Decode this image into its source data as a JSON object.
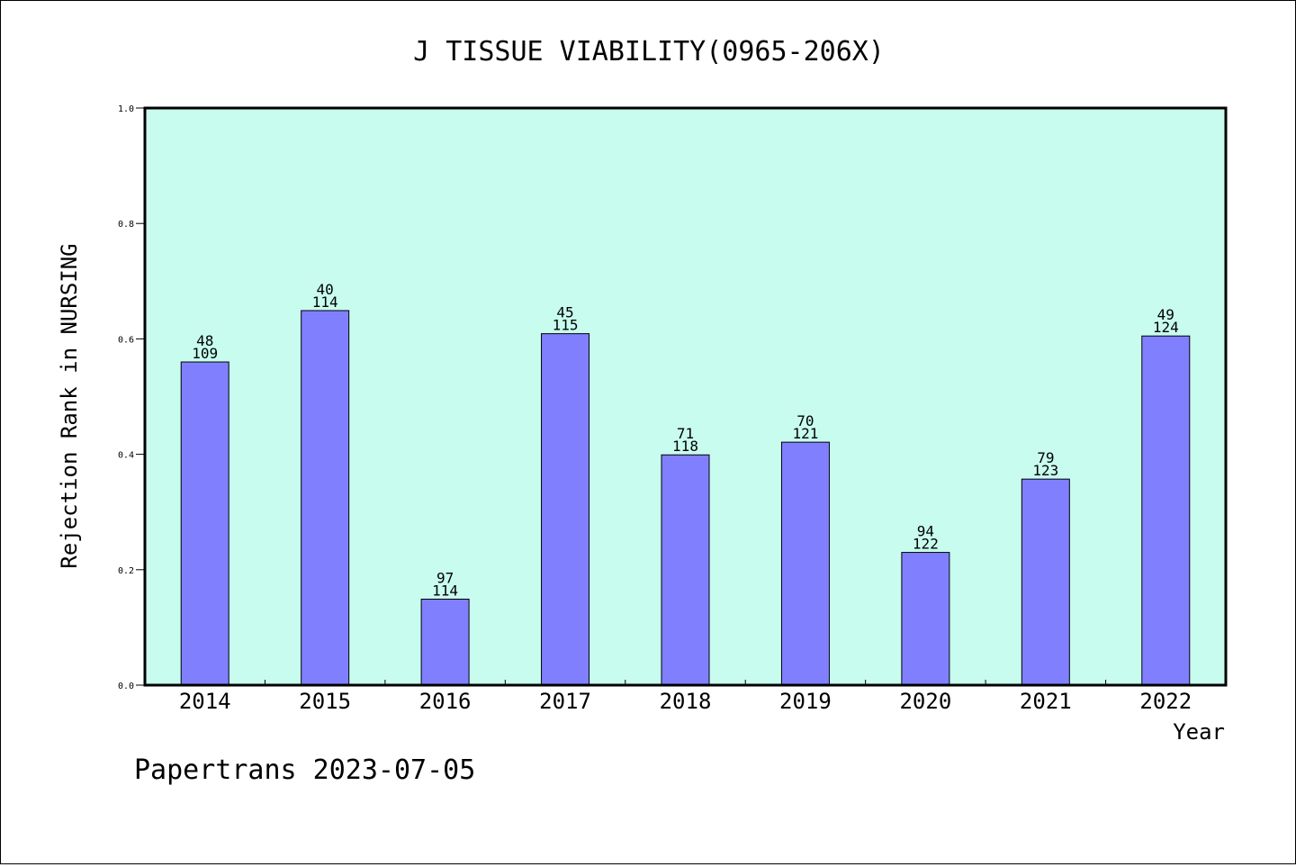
{
  "chart_data": {
    "type": "bar",
    "title": "J TISSUE VIABILITY(0965-206X)",
    "ylabel": "Rejection Rank in NURSING",
    "xlabel": "Year",
    "ylim": [
      0,
      1.0
    ],
    "yticks": [
      "0.0",
      "0.2",
      "0.4",
      "0.6",
      "0.8",
      "1.0"
    ],
    "ytick_values": [
      0,
      0.2,
      0.4,
      0.6,
      0.8,
      1.0
    ],
    "categories": [
      "2014",
      "2015",
      "2016",
      "2017",
      "2018",
      "2019",
      "2020",
      "2021",
      "2022"
    ],
    "values": [
      0.56,
      0.649,
      0.149,
      0.609,
      0.399,
      0.421,
      0.23,
      0.357,
      0.605
    ],
    "labels_top": [
      "48",
      "40",
      "97",
      "45",
      "71",
      "70",
      "94",
      "79",
      "49"
    ],
    "labels_bottom": [
      "109",
      "114",
      "114",
      "115",
      "118",
      "121",
      "122",
      "123",
      "124"
    ],
    "grid": false,
    "colors": {
      "plot_bg": "#c8fcee",
      "bar": "#8080ff",
      "bar_edge": "#000000"
    }
  },
  "footer": {
    "text": "Papertrans 2023-07-05"
  }
}
